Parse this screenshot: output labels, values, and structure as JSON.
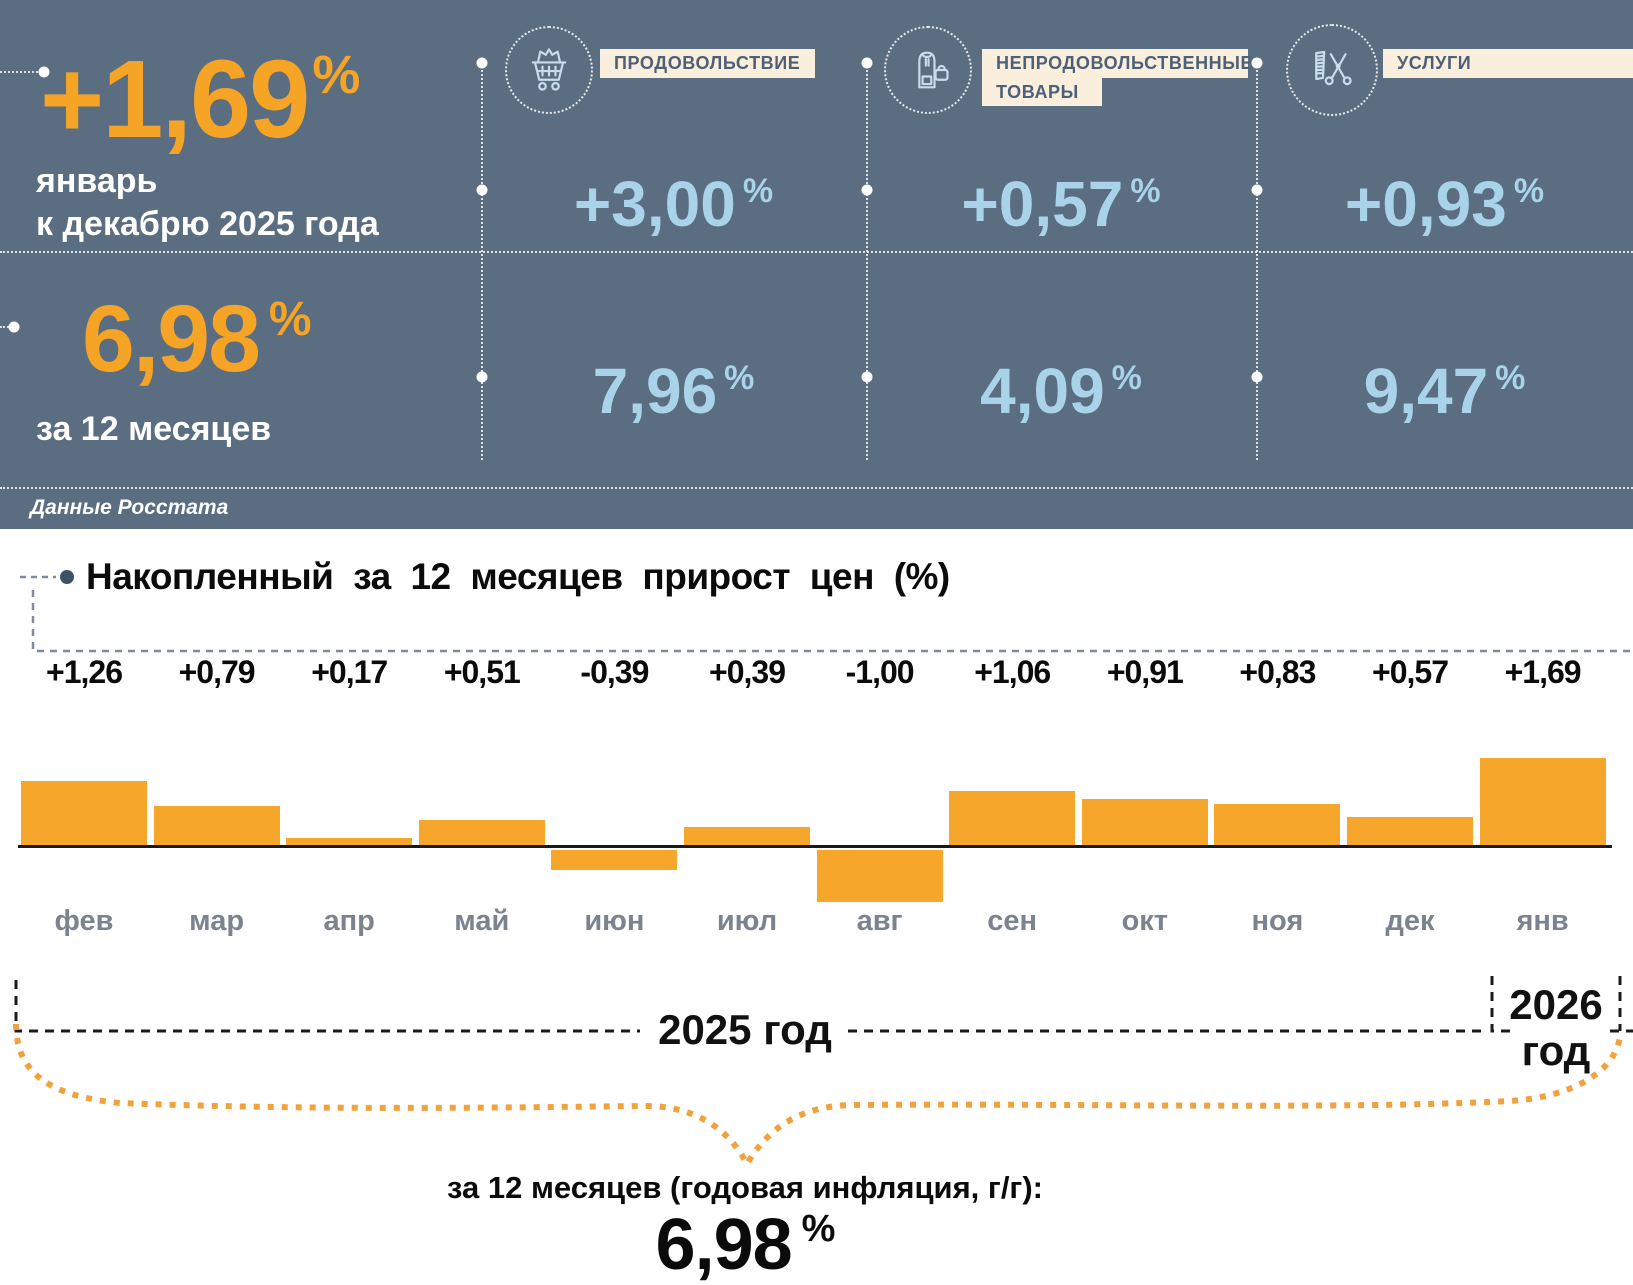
{
  "header": {
    "background_color": "#5B6D81",
    "accent_orange": "#F5A426",
    "accent_lightblue": "#A8D3E9",
    "category_label_bg": "#FAEEDC",
    "category_label_text_color": "#4D6078",
    "month_change": {
      "value": "+1,69",
      "percent_sign": "%",
      "period_line1": "январь",
      "period_line2": "к декабрю 2025 года"
    },
    "annual_change": {
      "value": "6,98",
      "percent_sign": "%",
      "period": "за 12 месяцев"
    },
    "source": "Данные Росстата",
    "categories": [
      {
        "icon": "shopping-cart-icon",
        "label_line1": "ПРОДОВОЛЬСТВИЕ",
        "monthly": "+3,00",
        "annual": "7,96",
        "percent_sign": "%"
      },
      {
        "icon": "clothing-bag-icon",
        "label_line1": "НЕПРОДОВОЛЬСТВЕННЫЕ",
        "label_line2": "ТОВАРЫ",
        "monthly": "+0,57",
        "annual": "4,09",
        "percent_sign": "%"
      },
      {
        "icon": "comb-scissors-icon",
        "label_line1": "УСЛУГИ",
        "monthly": "+0,93",
        "annual": "9,47",
        "percent_sign": "%"
      }
    ]
  },
  "chart_data": {
    "type": "bar",
    "title": "Накопленный за 12 месяцев прирост цен (%)",
    "categories": [
      "фев",
      "мар",
      "апр",
      "май",
      "июн",
      "июл",
      "авг",
      "сен",
      "окт",
      "ноя",
      "дек",
      "янв"
    ],
    "values": [
      1.26,
      0.79,
      0.17,
      0.51,
      -0.39,
      0.39,
      -1.0,
      1.06,
      0.91,
      0.83,
      0.57,
      1.69
    ],
    "value_labels": [
      "+1,26",
      "+0,79",
      "+0,17",
      "+0,51",
      "-0,39",
      "+0,39",
      "-1,00",
      "+1,06",
      "+0,91",
      "+0,83",
      "+0,57",
      "+1,69"
    ],
    "bar_color": "#F7A62C",
    "ylim": [
      -1.2,
      1.9
    ],
    "grid": false,
    "xlabel": "",
    "ylabel": "",
    "x_axis_periods": [
      {
        "label": "2025 год",
        "months": "фев–дек"
      },
      {
        "label": "2026 год",
        "months": "янв"
      }
    ]
  },
  "footer": {
    "period_2025": "2025 год",
    "period_2026_line1": "2026",
    "period_2026_line2": "год",
    "annual_inflation_label": "за 12 месяцев (годовая инфляция, г/г):",
    "annual_inflation_value": "6,98",
    "percent_sign": "%"
  }
}
